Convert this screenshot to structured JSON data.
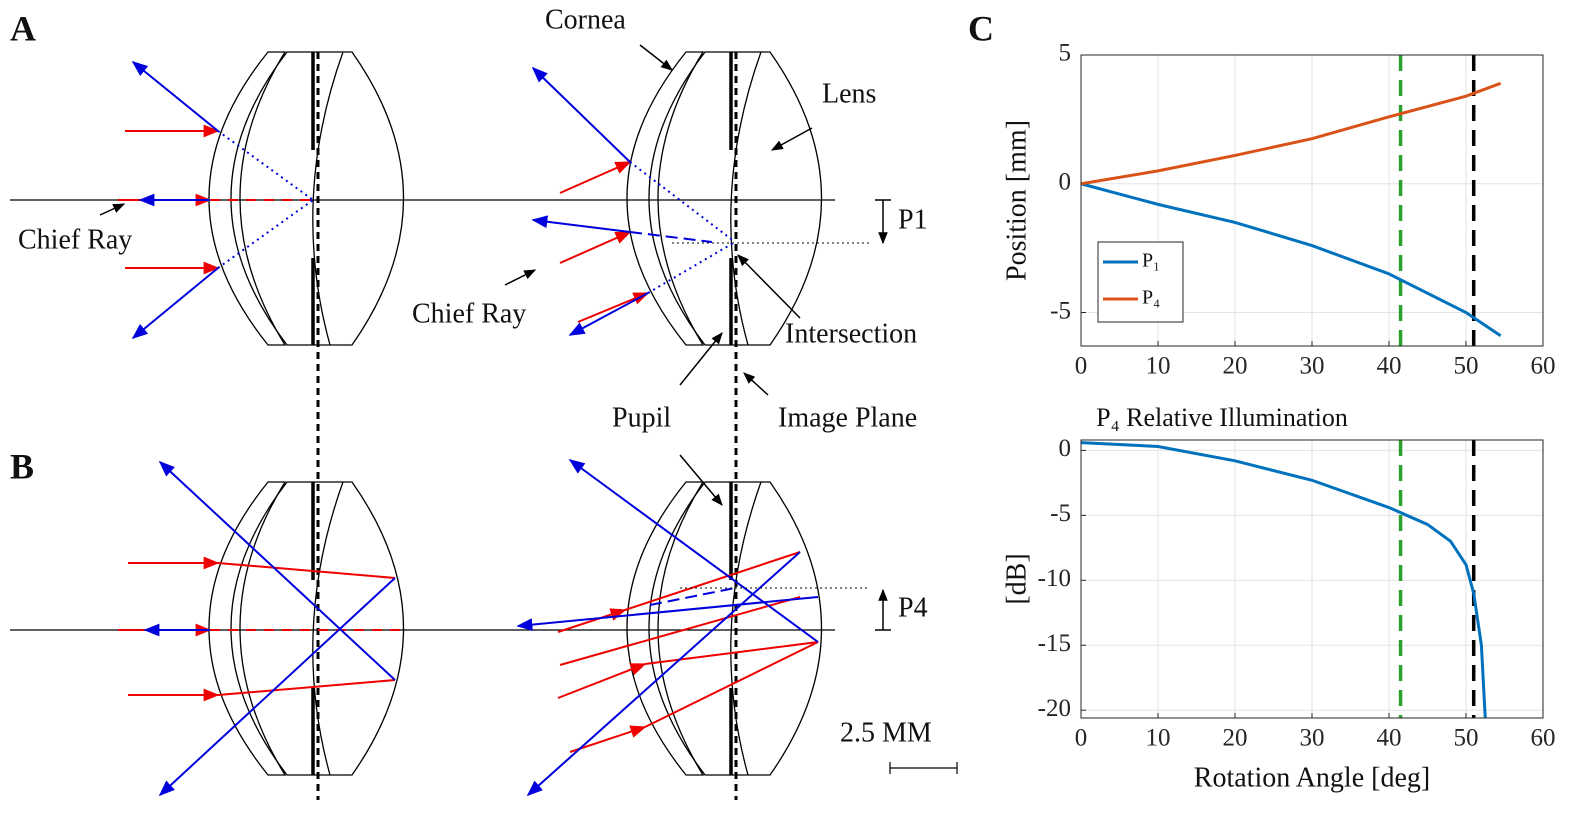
{
  "diagram": {
    "panel_labels": [
      "A",
      "B",
      "C"
    ],
    "annotations": [
      "Cornea",
      "Lens",
      "Chief Ray",
      "Chief Ray",
      "Intersection",
      "Pupil",
      "Image Plane"
    ],
    "p1_label": "P1",
    "p4_label": "P4",
    "scale_bar": "2.5 MM"
  },
  "chart_data": [
    {
      "type": "line",
      "ylabel": "Position [mm]",
      "xlim": [
        0,
        60
      ],
      "xticks": [
        0,
        10,
        20,
        30,
        40,
        50,
        60
      ],
      "ylim": [
        -6.3,
        5
      ],
      "yticks": [
        -5,
        0,
        5
      ],
      "grid": true,
      "legend": "lower-left",
      "series": [
        {
          "name": "P₁",
          "color": "#0072bd",
          "x": [
            0,
            10,
            20,
            30,
            40,
            50,
            54.5
          ],
          "values": [
            0,
            -0.8,
            -1.5,
            -2.4,
            -3.5,
            -5.0,
            -5.9
          ]
        },
        {
          "name": "P₄",
          "color": "#d95319",
          "x": [
            0,
            10,
            20,
            30,
            40,
            50,
            54.5
          ],
          "values": [
            0,
            0.5,
            1.1,
            1.75,
            2.6,
            3.4,
            3.9
          ]
        }
      ],
      "reference_lines": [
        {
          "x": 41.5,
          "color": "#2ca02c"
        },
        {
          "x": 51,
          "color": "#000000"
        }
      ]
    },
    {
      "type": "line",
      "title": "P₄ Relative Illumination",
      "xlabel": "Rotation Angle [deg]",
      "ylabel": "[dB]",
      "xlim": [
        0,
        60
      ],
      "xticks": [
        0,
        10,
        20,
        30,
        40,
        50,
        60
      ],
      "ylim": [
        -20.6,
        0.8
      ],
      "yticks": [
        -20,
        -15,
        -10,
        -5,
        0
      ],
      "grid": true,
      "series": [
        {
          "color": "#0072bd",
          "x": [
            0,
            10,
            20,
            30,
            40,
            45,
            48,
            50,
            51,
            52,
            52.5
          ],
          "values": [
            0.6,
            0.3,
            -0.8,
            -2.3,
            -4.4,
            -5.7,
            -7,
            -8.8,
            -11,
            -15,
            -20.6
          ]
        }
      ],
      "reference_lines": [
        {
          "x": 41.5,
          "color": "#2ca02c"
        },
        {
          "x": 51,
          "color": "#000000"
        }
      ]
    }
  ]
}
